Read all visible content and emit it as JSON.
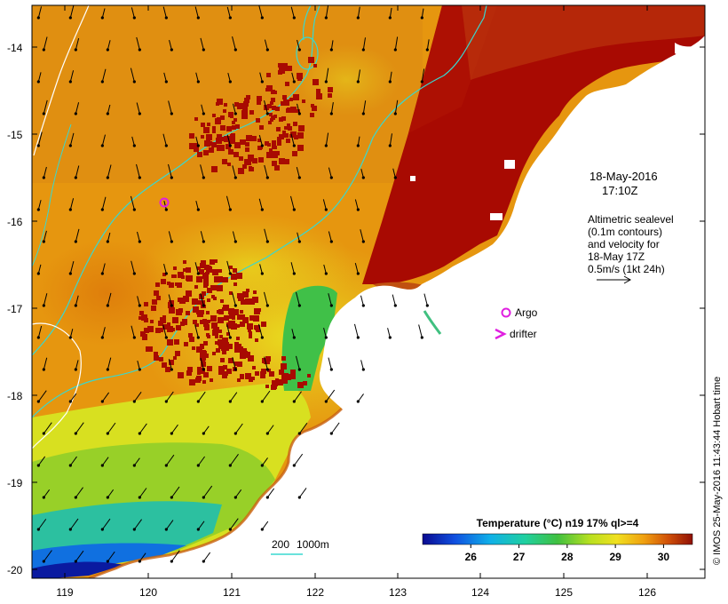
{
  "map": {
    "date": "18-May-2016",
    "time": "17:10Z",
    "legend_lines": [
      "Altimetric sealevel",
      "(0.1m contours)",
      "and velocity for",
      "18-May 17Z",
      "0.5m/s (1kt 24h)"
    ],
    "symbols": {
      "argo": "Argo",
      "drifter": "drifter"
    },
    "scale_bar": {
      "label_a": "200",
      "label_b": "1000m"
    },
    "credit": "© IMOS 25-May-2016 11:43:44 Hobart time",
    "colors": {
      "land": "#ffffff",
      "warm_front": "#a80a02",
      "argo": "#e020e0",
      "contour": "#38d8d0"
    }
  },
  "axes": {
    "lon_ticks": [
      "119",
      "120",
      "121",
      "122",
      "123",
      "124",
      "125",
      "126"
    ],
    "lat_ticks": [
      "-14",
      "-15",
      "-16",
      "-17",
      "-18",
      "-19",
      "-20"
    ]
  },
  "colorbar": {
    "title": "Temperature (°C) n19 17% ql>=4",
    "tick_labels": [
      "26",
      "27",
      "28",
      "29",
      "30"
    ],
    "tick_values": [
      26,
      27,
      28,
      29,
      30
    ],
    "range": [
      25.0,
      30.6
    ]
  }
}
